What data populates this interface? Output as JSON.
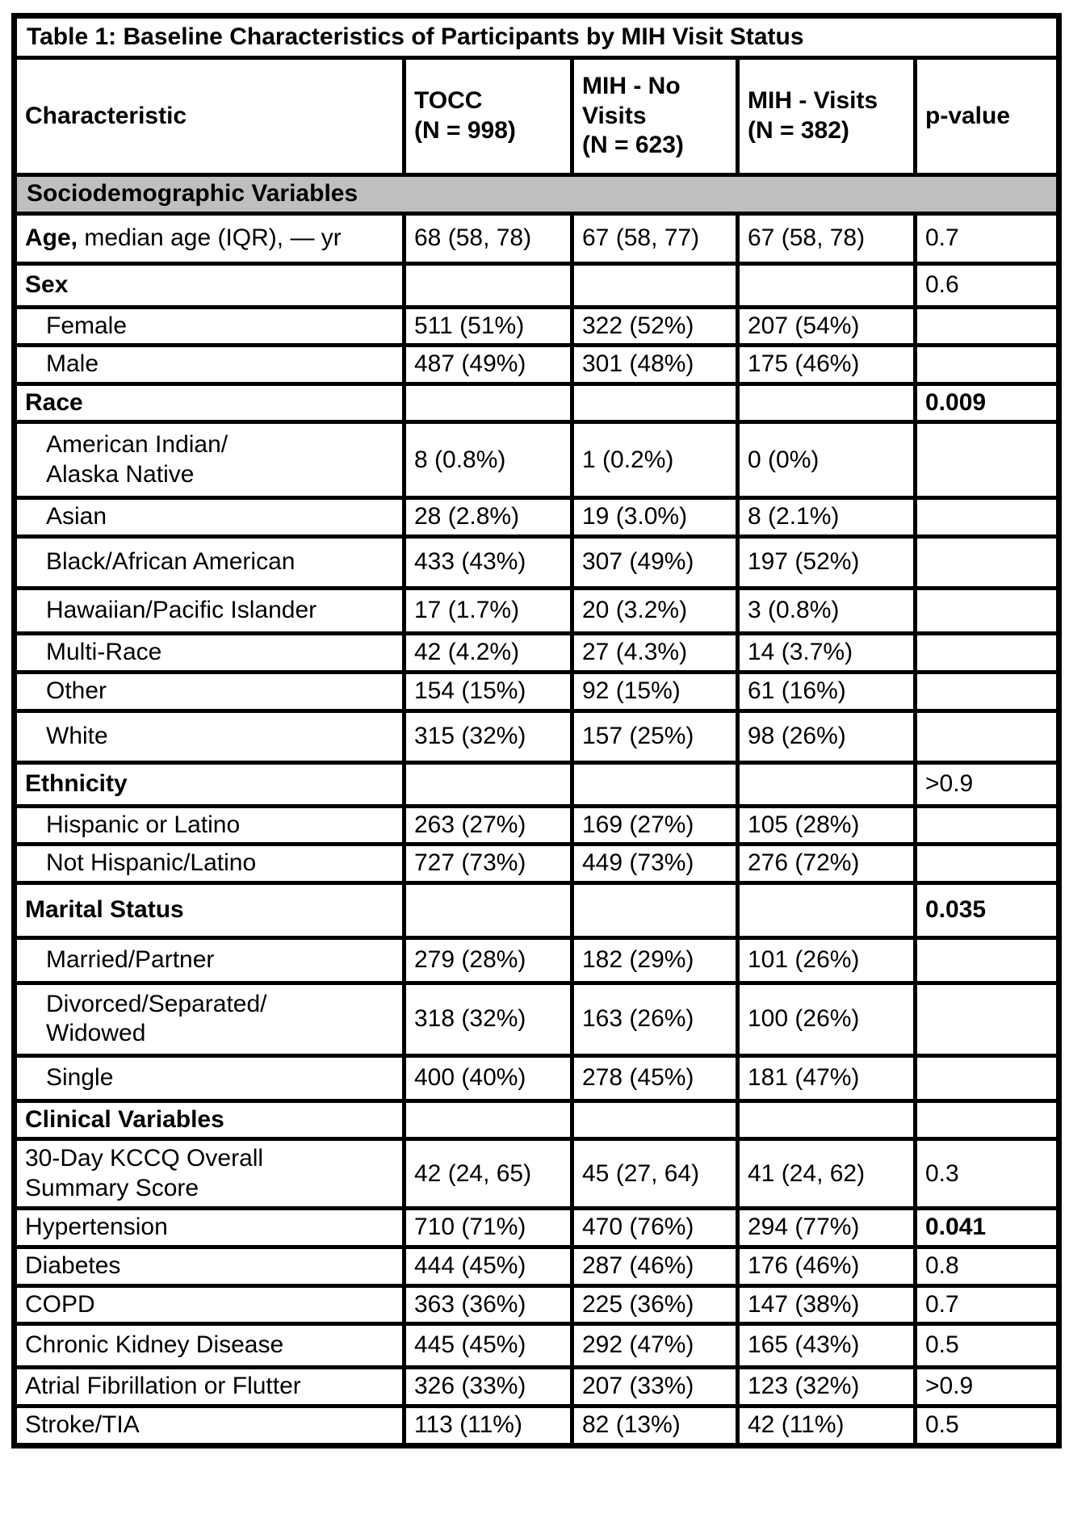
{
  "title": "Table 1: Baseline Characteristics of Participants by MIH Visit Status",
  "columns": [
    "Characteristic",
    "TOCC\n(N = 998)",
    "MIH - No\nVisits\n(N = 623)",
    "MIH - Visits\n(N = 382)",
    "p-value"
  ],
  "colors": {
    "section_bg": "#bfbfbf",
    "border": "#000000",
    "text": "#000000"
  },
  "rows": [
    {
      "type": "section",
      "label": "Sociodemographic Variables"
    },
    {
      "type": "data",
      "label_bold": "Age,",
      "label": " median age (IQR), — yr",
      "values": [
        "68 (58, 78)",
        "67 (58, 77)",
        "67 (58, 78)"
      ],
      "p": "0.7",
      "p_bold": false
    },
    {
      "type": "group",
      "label": "Sex",
      "values": [
        "",
        "",
        ""
      ],
      "p": "0.6",
      "p_bold": false
    },
    {
      "type": "sub",
      "label": "Female",
      "values": [
        "511 (51%)",
        "322 (52%)",
        "207 (54%)"
      ],
      "p": "",
      "p_bold": false
    },
    {
      "type": "sub",
      "label": "Male",
      "values": [
        "487 (49%)",
        "301 (48%)",
        "175 (46%)"
      ],
      "p": "",
      "p_bold": false
    },
    {
      "type": "group",
      "label": "Race",
      "values": [
        "",
        "",
        ""
      ],
      "p": "0.009",
      "p_bold": true
    },
    {
      "type": "sub",
      "label": "American Indian/\nAlaska Native",
      "values": [
        "8 (0.8%)",
        "1 (0.2%)",
        "0 (0%)"
      ],
      "p": "",
      "p_bold": false
    },
    {
      "type": "sub",
      "label": "Asian",
      "values": [
        "28 (2.8%)",
        "19 (3.0%)",
        "8 (2.1%)"
      ],
      "p": "",
      "p_bold": false
    },
    {
      "type": "sub",
      "label": "Black/African American",
      "values": [
        "433 (43%)",
        "307 (49%)",
        "197 (52%)"
      ],
      "p": "",
      "p_bold": false
    },
    {
      "type": "sub",
      "label": "Hawaiian/Pacific Islander",
      "values": [
        "17 (1.7%)",
        "20 (3.2%)",
        "3 (0.8%)"
      ],
      "p": "",
      "p_bold": false
    },
    {
      "type": "sub",
      "label": "Multi-Race",
      "values": [
        "42 (4.2%)",
        "27 (4.3%)",
        "14 (3.7%)"
      ],
      "p": "",
      "p_bold": false
    },
    {
      "type": "sub",
      "label": "Other",
      "values": [
        "154 (15%)",
        "92 (15%)",
        "61 (16%)"
      ],
      "p": "",
      "p_bold": false
    },
    {
      "type": "sub",
      "label": "White",
      "values": [
        "315 (32%)",
        "157 (25%)",
        "98 (26%)"
      ],
      "p": "",
      "p_bold": false
    },
    {
      "type": "group",
      "label": "Ethnicity",
      "values": [
        "",
        "",
        ""
      ],
      "p": ">0.9",
      "p_bold": false
    },
    {
      "type": "sub",
      "label": "Hispanic or Latino",
      "values": [
        "263 (27%)",
        "169 (27%)",
        "105 (28%)"
      ],
      "p": "",
      "p_bold": false
    },
    {
      "type": "sub",
      "label": "Not Hispanic/Latino",
      "values": [
        "727 (73%)",
        "449 (73%)",
        "276 (72%)"
      ],
      "p": "",
      "p_bold": false
    },
    {
      "type": "group",
      "label": "Marital Status",
      "values": [
        "",
        "",
        ""
      ],
      "p": "0.035",
      "p_bold": true
    },
    {
      "type": "sub",
      "label": "Married/Partner",
      "values": [
        "279 (28%)",
        "182 (29%)",
        "101 (26%)"
      ],
      "p": "",
      "p_bold": false
    },
    {
      "type": "sub",
      "label": "Divorced/Separated/\nWidowed",
      "values": [
        "318 (32%)",
        "163 (26%)",
        "100 (26%)"
      ],
      "p": "",
      "p_bold": false
    },
    {
      "type": "sub",
      "label": "Single",
      "values": [
        "400 (40%)",
        "278 (45%)",
        "181 (47%)"
      ],
      "p": "",
      "p_bold": false
    },
    {
      "type": "group",
      "label": "Clinical Variables",
      "values": [
        "",
        "",
        ""
      ],
      "p": "",
      "p_bold": false
    },
    {
      "type": "data",
      "label": "30-Day KCCQ Overall\nSummary Score",
      "values": [
        "42 (24, 65)",
        "45 (27, 64)",
        "41 (24, 62)"
      ],
      "p": "0.3",
      "p_bold": false
    },
    {
      "type": "data",
      "label": "Hypertension",
      "values": [
        "710 (71%)",
        "470 (76%)",
        "294 (77%)"
      ],
      "p": "0.041",
      "p_bold": true
    },
    {
      "type": "data",
      "label": "Diabetes",
      "values": [
        "444 (45%)",
        "287 (46%)",
        "176 (46%)"
      ],
      "p": "0.8",
      "p_bold": false
    },
    {
      "type": "data",
      "label": "COPD",
      "values": [
        "363 (36%)",
        "225 (36%)",
        "147 (38%)"
      ],
      "p": "0.7",
      "p_bold": false
    },
    {
      "type": "data",
      "label": "Chronic Kidney Disease",
      "values": [
        "445 (45%)",
        "292 (47%)",
        "165 (43%)"
      ],
      "p": "0.5",
      "p_bold": false
    },
    {
      "type": "data",
      "label": "Atrial Fibrillation or Flutter",
      "values": [
        "326 (33%)",
        "207 (33%)",
        "123 (32%)"
      ],
      "p": ">0.9",
      "p_bold": false
    },
    {
      "type": "data",
      "label": "Stroke/TIA",
      "values": [
        "113 (11%)",
        "82 (13%)",
        "42 (11%)"
      ],
      "p": "0.5",
      "p_bold": false
    }
  ]
}
